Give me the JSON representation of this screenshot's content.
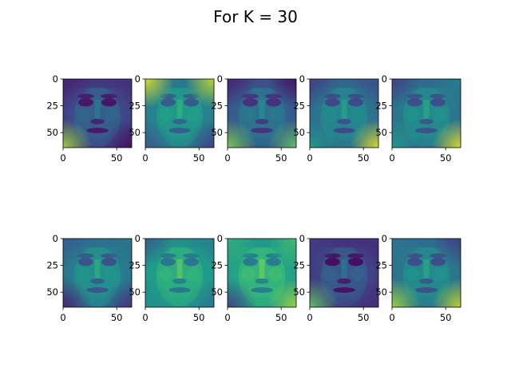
{
  "title": "For K = 30",
  "chart_data": {
    "type": "heatmap",
    "title": "For K = 30",
    "colormap": "viridis",
    "grid": false,
    "rows": 2,
    "cols": 5,
    "image_size": [
      64,
      64
    ],
    "xlim": [
      0,
      64
    ],
    "ylim": [
      64,
      0
    ],
    "x_ticks": [
      0,
      50
    ],
    "y_ticks": [
      0,
      25,
      50
    ],
    "x_tick_labels": [
      "0",
      "50"
    ],
    "y_tick_labels": [
      "0",
      "25",
      "50"
    ],
    "panels": [
      {
        "index": 1,
        "tone": 0.22,
        "corners": [
          0.1,
          0.15,
          0.85,
          0.05
        ]
      },
      {
        "index": 2,
        "tone": 0.45,
        "corners": [
          0.95,
          0.9,
          0.3,
          0.2
        ]
      },
      {
        "index": 3,
        "tone": 0.3,
        "corners": [
          0.1,
          0.05,
          0.8,
          0.75
        ]
      },
      {
        "index": 4,
        "tone": 0.38,
        "corners": [
          0.2,
          0.25,
          0.55,
          0.95
        ]
      },
      {
        "index": 5,
        "tone": 0.4,
        "corners": [
          0.2,
          0.45,
          0.55,
          0.95
        ]
      },
      {
        "index": 6,
        "tone": 0.42,
        "corners": [
          0.3,
          0.4,
          0.1,
          0.15
        ]
      },
      {
        "index": 7,
        "tone": 0.55,
        "corners": [
          0.3,
          0.45,
          0.5,
          0.4
        ]
      },
      {
        "index": 8,
        "tone": 0.58,
        "corners": [
          0.65,
          0.7,
          0.2,
          0.85
        ]
      },
      {
        "index": 9,
        "tone": 0.2,
        "corners": [
          0.2,
          0.15,
          0.75,
          0.15
        ]
      },
      {
        "index": 10,
        "tone": 0.4,
        "corners": [
          0.4,
          0.2,
          0.85,
          0.9
        ]
      }
    ]
  }
}
